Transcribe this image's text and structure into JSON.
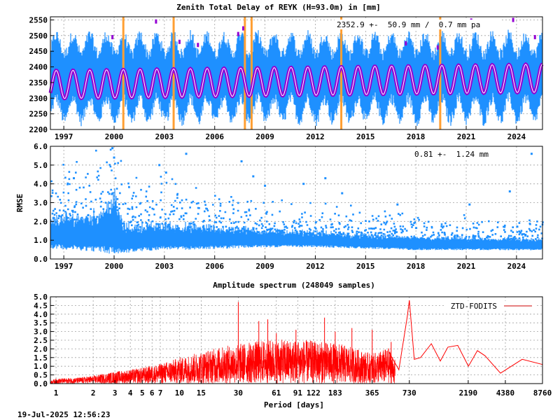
{
  "footer": {
    "timestamp": "19-Jul-2025 12:56:23"
  },
  "colors": {
    "ztd": "#1e90ff",
    "model": "#9400d3",
    "model_core": "#ffffff",
    "offset": "#ff9f33",
    "spectrum": "#ff0000",
    "legend_line": "#cc0000",
    "grid": "#a0a0a0"
  },
  "chart_data": [
    {
      "type": "scatter",
      "title": "Zenith Total Delay of REYK (H=93.0m) in [mm]",
      "annotation": "2352.9 +-  50.9 mm /  0.7 mm pa",
      "xlim": [
        1996.2,
        2025.55
      ],
      "ylim": [
        2200,
        2560
      ],
      "x_ticks": [
        1997,
        2000,
        2003,
        2006,
        2009,
        2012,
        2015,
        2018,
        2021,
        2024
      ],
      "x_tick_labels": [
        "1997",
        "2000",
        "2003",
        "2006",
        "2009",
        "2012",
        "2015",
        "2018",
        "2021",
        "2024"
      ],
      "y_ticks": [
        2200,
        2250,
        2300,
        2350,
        2400,
        2450,
        2500,
        2550
      ],
      "y_tick_labels": [
        "2200",
        "2250",
        "2300",
        "2350",
        "2400",
        "2450",
        "2500",
        "2550"
      ],
      "mean": 2352.9,
      "seasonal_amplitude": 45,
      "trend_mm_per_year": 0.7,
      "envelope": {
        "low_winter": 2230,
        "low_summer": 2300,
        "high_winter": 2440,
        "high_summer": 2500
      },
      "offsets": [
        2000.55,
        2003.55,
        2007.8,
        2008.2,
        2013.55,
        2019.45
      ],
      "outliers": [
        [
          1999.9,
          2495
        ],
        [
          2002.5,
          2545
        ],
        [
          2003.9,
          2480
        ],
        [
          2005.0,
          2470
        ],
        [
          2007.4,
          2505
        ],
        [
          2007.7,
          2523
        ],
        [
          2017.4,
          2475
        ],
        [
          2019.3,
          2462
        ],
        [
          2021.3,
          2548
        ],
        [
          2023.8,
          2550
        ],
        [
          2025.1,
          2495
        ]
      ]
    },
    {
      "type": "scatter",
      "ylabel": "RMSE",
      "annotation": "0.81 +-  1.24 mm",
      "xlim": [
        1996.2,
        2025.55
      ],
      "ylim": [
        0,
        6
      ],
      "x_ticks": [
        1997,
        2000,
        2003,
        2006,
        2009,
        2012,
        2015,
        2018,
        2021,
        2024
      ],
      "x_tick_labels": [
        "1997",
        "2000",
        "2003",
        "2006",
        "2009",
        "2012",
        "2015",
        "2018",
        "2021",
        "2024"
      ],
      "y_ticks": [
        0,
        1,
        2,
        3,
        4,
        5,
        6
      ],
      "y_tick_labels": [
        "0.0",
        "1.0",
        "2.0",
        "3.0",
        "4.0",
        "5.0",
        "6.0"
      ],
      "level_by_year": [
        [
          1996.2,
          1.2
        ],
        [
          1999.0,
          1.2
        ],
        [
          2000.0,
          1.5
        ],
        [
          2000.6,
          0.9
        ],
        [
          2003.0,
          1.05
        ],
        [
          2004.0,
          1.0
        ],
        [
          2008.0,
          1.0
        ],
        [
          2012.0,
          0.95
        ],
        [
          2015.0,
          0.85
        ],
        [
          2018.0,
          0.75
        ],
        [
          2025.55,
          0.7
        ]
      ],
      "spread_by_year": [
        [
          1996.2,
          0.55
        ],
        [
          1999.0,
          0.7
        ],
        [
          2000.0,
          1.1
        ],
        [
          2000.6,
          0.5
        ],
        [
          2004.0,
          0.45
        ],
        [
          2010.0,
          0.3
        ],
        [
          2016.0,
          0.25
        ],
        [
          2025.55,
          0.2
        ]
      ],
      "outliers": [
        [
          1997.6,
          4.3
        ],
        [
          1999.9,
          5.9
        ],
        [
          2000.0,
          5.4
        ],
        [
          2002.7,
          5.0
        ],
        [
          2003.1,
          4.6
        ],
        [
          2004.3,
          5.6
        ],
        [
          2007.6,
          5.2
        ],
        [
          2008.3,
          4.4
        ],
        [
          2009.0,
          3.9
        ],
        [
          2011.3,
          4.0
        ],
        [
          2012.6,
          4.3
        ],
        [
          2013.6,
          3.5
        ],
        [
          2016.9,
          2.9
        ],
        [
          2021.2,
          2.9
        ],
        [
          2023.6,
          3.6
        ],
        [
          2024.9,
          5.6
        ]
      ]
    },
    {
      "type": "line",
      "title": "Amplitude spectrum (248049 samples)",
      "xlabel": "Period [days]",
      "x_scale": "log",
      "xlim": [
        0.9,
        8760
      ],
      "ylim": [
        0,
        5
      ],
      "x_ticks": [
        1,
        2,
        3,
        4,
        5,
        6,
        7,
        10,
        15,
        30,
        61,
        91,
        122,
        183,
        365,
        730,
        2190,
        4380,
        8760
      ],
      "x_tick_labels": [
        "1",
        "2",
        "3",
        "4",
        "5",
        "6",
        "7",
        "10",
        "15",
        "30",
        "61",
        "91",
        "122",
        "183",
        "365",
        "730",
        "2190",
        "4380",
        "8760"
      ],
      "y_ticks": [
        0,
        0.5,
        1,
        1.5,
        2,
        2.5,
        3,
        3.5,
        4,
        4.5,
        5
      ],
      "y_tick_labels": [
        "0.0",
        "0.5",
        "1.0",
        "1.5",
        "2.0",
        "2.5",
        "3.0",
        "3.5",
        "4.0",
        "4.5",
        "5.0"
      ],
      "series": [
        {
          "name": "ZTD-FODITS",
          "x": [
            0.9,
            1,
            1.5,
            2,
            3,
            5,
            7,
            10,
            15,
            20,
            30,
            50,
            100,
            200,
            365,
            500,
            600,
            700,
            730,
            800,
            900,
            1100,
            1300,
            1500,
            1800,
            2200,
            2600,
            3000,
            4000,
            6000,
            8760
          ],
          "y": [
            0.15,
            0.25,
            0.3,
            0.4,
            0.6,
            0.8,
            1.0,
            1.3,
            1.6,
            1.8,
            2.0,
            2.2,
            2.2,
            2.0,
            1.5,
            1.8,
            0.8,
            3.8,
            4.8,
            1.4,
            1.5,
            2.3,
            1.3,
            2.1,
            2.2,
            1.0,
            1.9,
            1.6,
            0.6,
            1.4,
            1.1
          ]
        }
      ],
      "spikes": [
        [
          30,
          4.7
        ],
        [
          44,
          3.6
        ],
        [
          52,
          3.7
        ],
        [
          61,
          2.9
        ],
        [
          88,
          3.1
        ],
        [
          150,
          3.8
        ],
        [
          183,
          3.0
        ],
        [
          250,
          3.2
        ],
        [
          365,
          3.1
        ],
        [
          520,
          2.4
        ]
      ],
      "legend_position": "top-right"
    }
  ]
}
